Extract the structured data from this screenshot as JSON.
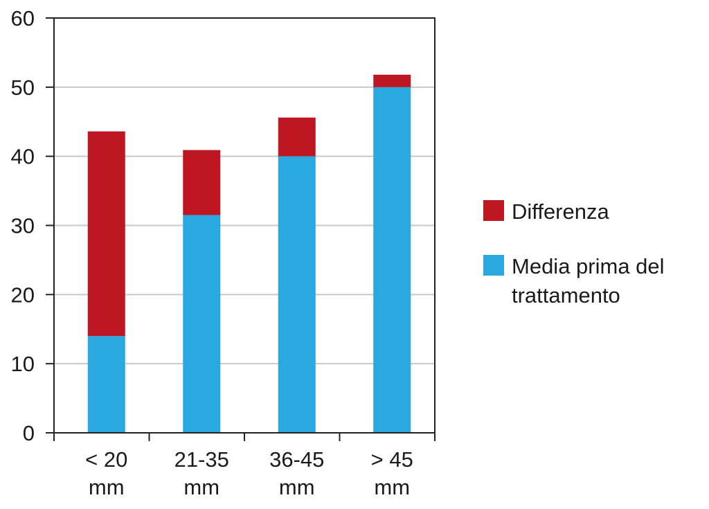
{
  "chart_data": {
    "type": "bar",
    "stacked": true,
    "title": "",
    "xlabel": "",
    "ylabel": "",
    "ylim": [
      0,
      60
    ],
    "yticks": [
      "0",
      "10",
      "20",
      "30",
      "40",
      "50",
      "60"
    ],
    "grid": true,
    "categories": [
      [
        "< 20",
        "mm"
      ],
      [
        "21-35",
        "mm"
      ],
      [
        "36-45",
        "mm"
      ],
      [
        "> 45",
        "mm"
      ]
    ],
    "series": [
      {
        "name": "Media prima del trattamento",
        "name_lines": [
          "Media prima del",
          "trattamento"
        ],
        "color": "#2aa9e0",
        "values": [
          14.0,
          31.5,
          40.0,
          50.0
        ]
      },
      {
        "name": "Differenza",
        "name_lines": [
          "Differenza"
        ],
        "color": "#be1622",
        "values": [
          29.6,
          9.4,
          5.6,
          1.8
        ]
      }
    ],
    "legend": {
      "placement": "right",
      "order": [
        "Differenza",
        "Media prima del trattamento"
      ]
    }
  }
}
